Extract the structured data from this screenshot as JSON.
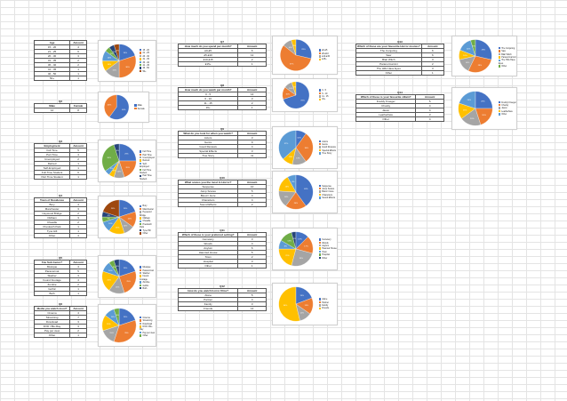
{
  "colors": [
    "#4472c4",
    "#ed7d31",
    "#a5a5a5",
    "#ffc000",
    "#5b9bd5",
    "#70ad47",
    "#264478",
    "#9e480e",
    "#636363"
  ],
  "tables": [
    {
      "id": "age",
      "caption": "",
      "headers": [
        "Age",
        "Amount"
      ],
      "rows": [
        [
          "15 - 20",
          "4"
        ],
        [
          "21 - 25",
          "6"
        ],
        [
          "26 - 30",
          "3"
        ],
        [
          "31 - 35",
          "2"
        ],
        [
          "36 - 40",
          "2"
        ],
        [
          "41 - 45",
          "1"
        ],
        [
          "46 - 50",
          "1"
        ],
        [
          "50+",
          "1"
        ]
      ]
    },
    {
      "id": "gender",
      "caption": "Q2",
      "headers": [
        "Male",
        "Female"
      ],
      "rows": [
        [
          "12",
          "8"
        ]
      ]
    },
    {
      "id": "employment",
      "caption": "Q3",
      "headers": [
        "Employment",
        "Amount"
      ],
      "rows": [
        [
          "Full Time",
          "5"
        ],
        [
          "Part Time",
          "4"
        ],
        [
          "Unemployed",
          "2"
        ],
        [
          "Retired",
          "1"
        ],
        [
          "Self-Employed",
          "1"
        ],
        [
          "Full Time Student",
          "6"
        ],
        [
          "Part Time Student",
          "1"
        ]
      ]
    },
    {
      "id": "attendance",
      "caption": "Q4",
      "headers": [
        "Town of Residence",
        "Amount"
      ],
      "rows": [
        [
          "Bury",
          "4"
        ],
        [
          "Manchester",
          "3"
        ],
        [
          "Heywood Bridge",
          "2"
        ],
        [
          "Oldham",
          "3"
        ],
        [
          "Cheadle",
          "2"
        ],
        [
          "Prestwich Park",
          "1"
        ],
        [
          "Tyne Hill",
          "1"
        ],
        [
          "Other",
          "4"
        ]
      ]
    },
    {
      "id": "genre",
      "caption": "Q5",
      "headers": [
        "Fav Sub Genre?",
        "Amount"
      ],
      "rows": [
        [
          "Musique",
          "4"
        ],
        [
          "Paranormal",
          "5"
        ],
        [
          "Slasher",
          "3"
        ],
        [
          "Found Footage",
          "4"
        ],
        [
          "Zombie",
          "2"
        ],
        [
          "Gothic",
          "1"
        ],
        [
          "Both",
          "1"
        ]
      ]
    },
    {
      "id": "media",
      "caption": "Q6",
      "headers": [
        "Media you watch most?",
        "Amount"
      ],
      "rows": [
        [
          "Cinema",
          "4"
        ],
        [
          "Streaming",
          "7"
        ],
        [
          "Download",
          "3"
        ],
        [
          "DVD / Blu-Ray",
          "3"
        ],
        [
          "Pay per view",
          "2"
        ],
        [
          "Other",
          "1"
        ]
      ]
    },
    {
      "id": "perweek",
      "caption": "Q7",
      "headers": [
        "How much do you spend per month?",
        "Amount"
      ],
      "rows": [
        [
          "£0-£5",
          "6"
        ],
        [
          "£5-£10",
          "12"
        ],
        [
          "£10-£15",
          "2"
        ],
        [
          "£15+",
          "1"
        ]
      ]
    },
    {
      "id": "permonth",
      "caption": "Q8",
      "headers": [
        "How much do you watch per month?",
        "Amount"
      ],
      "rows": [
        [
          "0 - 5",
          "14"
        ],
        [
          "6 - 10",
          "3"
        ],
        [
          "11 - 15",
          "2"
        ],
        [
          "16+",
          "1"
        ]
      ]
    },
    {
      "id": "wherefind",
      "caption": "Q9",
      "headers": [
        "What do you look for when you watch?",
        "Amount"
      ],
      "rows": [
        [
          "Actors",
          "3"
        ],
        [
          "Genre",
          "9"
        ],
        [
          "Good Reviews",
          "4"
        ],
        [
          "Special Effects",
          "3"
        ],
        [
          "True Story",
          "11"
        ]
      ]
    },
    {
      "id": "influence",
      "caption": "Q10",
      "headers": [
        "What scares you the most in Horror?",
        "Amount"
      ],
      "rows": [
        [
          "Suspense",
          "10"
        ],
        [
          "Jump Scares",
          "5"
        ],
        [
          "Blood / Gore",
          "4"
        ],
        [
          "Characters",
          "4"
        ],
        [
          "Sound Effects",
          "2"
        ]
      ]
    },
    {
      "id": "platform",
      "caption": "Q11",
      "headers": [
        "Which of these is your preferred setting?",
        "Amount"
      ],
      "rows": [
        [
          "Cemetery",
          "3"
        ],
        [
          "Woods",
          "4"
        ],
        [
          "Asylum",
          "6"
        ],
        [
          "Haunted House",
          "5"
        ],
        [
          "Town",
          "2"
        ],
        [
          "Hospital",
          "3"
        ],
        [
          "Other",
          "1"
        ]
      ]
    },
    {
      "id": "medium",
      "caption": "Q12",
      "headers": [
        "How do you watch horror films?",
        "Amount"
      ],
      "rows": [
        [
          "Alone",
          "5"
        ],
        [
          "Partner",
          "4"
        ],
        [
          "Family",
          "3"
        ],
        [
          "Friends",
          "14"
        ]
      ]
    },
    {
      "id": "favhorror",
      "caption": "Q13",
      "headers": [
        "Which of these are your favourite Horror movies?",
        "Amount"
      ],
      "rows": [
        [
          "The Conjuring",
          "6"
        ],
        [
          "Saw",
          "6"
        ],
        [
          "Blair Witch",
          "3"
        ],
        [
          "Paranormal Act",
          "2"
        ],
        [
          "The Hills Have Eyes",
          "3"
        ],
        [
          "Other",
          "1"
        ]
      ]
    },
    {
      "id": "villain",
      "caption": "Q14",
      "headers": [
        "Which of these is your favourite villain?",
        "Amount"
      ],
      "rows": [
        [
          "Freddy Krueger",
          "5"
        ],
        [
          "Chucky",
          "4"
        ],
        [
          "Jason",
          "4"
        ],
        [
          "Leatherface",
          "3"
        ],
        [
          "Other",
          "4"
        ]
      ]
    }
  ],
  "chart_data": [
    {
      "type": "pie",
      "title": "",
      "categories": [
        "15 - 20",
        "21 - 25",
        "26 - 30",
        "31 - 35",
        "36 - 40",
        "41 - 45",
        "46 - 50",
        "50+"
      ],
      "values": [
        4,
        6,
        3,
        2,
        2,
        1,
        1,
        1
      ]
    },
    {
      "type": "pie",
      "title": "",
      "categories": [
        "Male",
        "Female"
      ],
      "values": [
        12,
        8
      ]
    },
    {
      "type": "pie",
      "title": "",
      "categories": [
        "Full Time",
        "Part Time",
        "Unemployed",
        "Retired",
        "Self-Employed",
        "Full Time Student",
        "Part Time Student"
      ],
      "values": [
        5,
        4,
        2,
        1,
        1,
        6,
        1
      ]
    },
    {
      "type": "pie",
      "title": "",
      "categories": [
        "Bury",
        "Manchester",
        "Heywood Bridge",
        "Oldham",
        "Cheadle",
        "Prestwich Park",
        "Tyne Hill",
        "Other"
      ],
      "values": [
        4,
        3,
        2,
        3,
        2,
        1,
        1,
        4
      ]
    },
    {
      "type": "pie",
      "title": "",
      "categories": [
        "Musique",
        "Paranormal",
        "Slasher",
        "Found Footage",
        "Zombie",
        "Gothic",
        "Both"
      ],
      "values": [
        4,
        5,
        3,
        4,
        2,
        1,
        1
      ]
    },
    {
      "type": "pie",
      "title": "",
      "categories": [
        "Cinema",
        "Streaming",
        "Download",
        "DVD / Blu-Ray",
        "Pay per view",
        "Other"
      ],
      "values": [
        4,
        7,
        3,
        3,
        2,
        1
      ]
    },
    {
      "type": "pie",
      "title": "",
      "categories": [
        "£0-£5",
        "£5-£10",
        "£10-£15",
        "£15+"
      ],
      "values": [
        6,
        12,
        2,
        1
      ]
    },
    {
      "type": "pie",
      "title": "",
      "categories": [
        "0 - 5",
        "6 - 10",
        "11 - 15",
        "16+"
      ],
      "values": [
        14,
        3,
        2,
        1
      ]
    },
    {
      "type": "pie",
      "title": "",
      "categories": [
        "Actors",
        "Genre",
        "Good Reviews",
        "Special Effects",
        "True Story"
      ],
      "values": [
        3,
        9,
        4,
        3,
        11
      ]
    },
    {
      "type": "pie",
      "title": "",
      "categories": [
        "Suspense",
        "Jump Scares",
        "Blood / Gore",
        "Characters",
        "Sound Effects"
      ],
      "values": [
        10,
        5,
        4,
        4,
        2
      ]
    },
    {
      "type": "pie",
      "title": "",
      "categories": [
        "Cemetery",
        "Woods",
        "Asylum",
        "Haunted House",
        "Town",
        "Hospital",
        "Other"
      ],
      "values": [
        3,
        4,
        6,
        5,
        2,
        3,
        1
      ]
    },
    {
      "type": "pie",
      "title": "",
      "categories": [
        "Alone",
        "Partner",
        "Family",
        "Friends"
      ],
      "values": [
        5,
        4,
        3,
        14
      ]
    },
    {
      "type": "pie",
      "title": "",
      "categories": [
        "The Conjuring",
        "Saw",
        "Blair Witch",
        "Paranormal Act",
        "The Hills Have Eyes",
        "Other"
      ],
      "values": [
        6,
        6,
        3,
        2,
        3,
        1
      ]
    },
    {
      "type": "pie",
      "title": "",
      "categories": [
        "Freddy Krueger",
        "Chucky",
        "Jason",
        "Leatherface",
        "Other"
      ],
      "values": [
        5,
        4,
        4,
        3,
        4
      ]
    }
  ]
}
